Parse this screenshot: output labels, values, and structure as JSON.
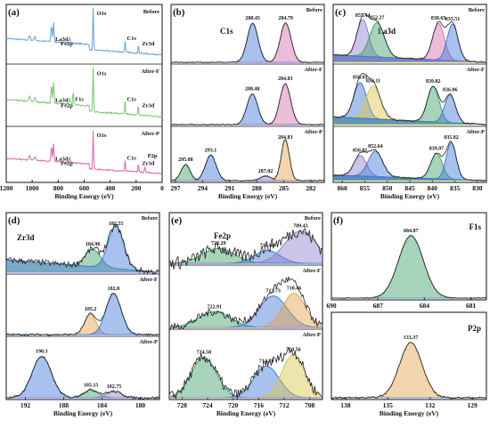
{
  "chart_data": [
    {
      "id": "a",
      "panel_label": "(a)",
      "type": "line",
      "xlabel": "Binding Energy (eV)",
      "xlim": [
        1200,
        0
      ],
      "xticks": [
        "1200",
        "1000",
        "800",
        "600",
        "400",
        "200",
        "0"
      ],
      "series": [
        {
          "name": "Before",
          "color": "#6aa0d8",
          "labels": [
            "La3d",
            "O1s",
            "Fe2p",
            "C1s",
            "Zr3d"
          ]
        },
        {
          "name": "After-F",
          "color": "#7fc27a",
          "labels": [
            "La3d",
            "O1s",
            "Fe2p",
            "F1s",
            "C1s",
            "Zr3d"
          ]
        },
        {
          "name": "After-P",
          "color": "#d96aa8",
          "labels": [
            "La3d",
            "O1s",
            "Fe2p",
            "C1s",
            "Zr3d",
            "P2p"
          ]
        }
      ],
      "peaks": [
        {
          "label": "La3d",
          "x": 836
        },
        {
          "label": "Fe2p",
          "x": 712
        },
        {
          "label": "F1s",
          "x": 685
        },
        {
          "label": "O1s",
          "x": 531
        },
        {
          "label": "C1s",
          "x": 285
        },
        {
          "label": "Zr3d",
          "x": 183
        },
        {
          "label": "P2p",
          "x": 133
        }
      ]
    },
    {
      "id": "b",
      "panel_label": "(b)",
      "type": "line",
      "title": "C1s",
      "xlabel": "Binding Energy (eV)",
      "xlim": [
        297.5,
        280.5
      ],
      "xticks": [
        "297",
        "294",
        "291",
        "288",
        "285",
        "282"
      ],
      "rows": [
        {
          "name": "Before",
          "peaks": [
            {
              "x": 288.45,
              "label": "288.45"
            },
            {
              "x": 284.79,
              "label": "284.79"
            }
          ]
        },
        {
          "name": "After-F",
          "peaks": [
            {
              "x": 288.48,
              "label": "288.48"
            },
            {
              "x": 284.83,
              "label": "284.83"
            }
          ]
        },
        {
          "name": "After-P",
          "peaks": [
            {
              "x": 295.88,
              "label": "295.88"
            },
            {
              "x": 293.1,
              "label": "293.1"
            },
            {
              "x": 287.02,
              "label": "287.02"
            },
            {
              "x": 284.83,
              "label": "284.83"
            }
          ]
        }
      ]
    },
    {
      "id": "c",
      "panel_label": "(c)",
      "type": "line",
      "title": "La3d",
      "xlabel": "Binding Energy (eV)",
      "xlim": [
        862,
        828
      ],
      "xticks": [
        "860",
        "855",
        "850",
        "845",
        "840",
        "835",
        "830"
      ],
      "rows": [
        {
          "name": "Before",
          "peaks": [
            {
              "x": 855.44,
              "label": "855.44"
            },
            {
              "x": 852.27,
              "label": "852.27"
            },
            {
              "x": 838.65,
              "label": "838.65"
            },
            {
              "x": 835.51,
              "label": "835.51"
            }
          ]
        },
        {
          "name": "After-F",
          "peaks": [
            {
              "x": 856.01,
              "label": "856.01"
            },
            {
              "x": 853.11,
              "label": "853.11"
            },
            {
              "x": 839.82,
              "label": "839.82"
            },
            {
              "x": 836.06,
              "label": "836.06"
            }
          ]
        },
        {
          "name": "After-P",
          "peaks": [
            {
              "x": 856.01,
              "label": "856.01"
            },
            {
              "x": 852.64,
              "label": "852.64"
            },
            {
              "x": 839.07,
              "label": "839.07"
            },
            {
              "x": 835.82,
              "label": "835.82"
            }
          ]
        }
      ]
    },
    {
      "id": "d",
      "panel_label": "(d)",
      "type": "line",
      "title": "Zr3d",
      "xlabel": "Binding Energy (eV)",
      "xlim": [
        194,
        178
      ],
      "xticks": [
        "192",
        "188",
        "184",
        "180"
      ],
      "rows": [
        {
          "name": "Before",
          "peaks": [
            {
              "x": 184.96,
              "label": "184.96"
            },
            {
              "x": 182.55,
              "label": "182.55"
            }
          ]
        },
        {
          "name": "After-F",
          "peaks": [
            {
              "x": 185.2,
              "label": "185.2"
            },
            {
              "x": 182.8,
              "label": "182.8"
            }
          ]
        },
        {
          "name": "After-P",
          "peaks": [
            {
              "x": 190.3,
              "label": "190.3"
            },
            {
              "x": 185.15,
              "label": "185.15"
            },
            {
              "x": 182.75,
              "label": "182.75"
            }
          ]
        }
      ]
    },
    {
      "id": "e",
      "panel_label": "(e)",
      "type": "line",
      "title": "Fe2p",
      "xlabel": "Binding Energy (eV)",
      "xlim": [
        730,
        706
      ],
      "xticks": [
        "728",
        "724",
        "720",
        "716",
        "712",
        "708"
      ],
      "rows": [
        {
          "name": "Before",
          "peaks": [
            {
              "x": 722.29,
              "label": "722.29"
            },
            {
              "x": 714.66,
              "label": "714.66"
            },
            {
              "x": 709.43,
              "label": "709.43"
            }
          ]
        },
        {
          "name": "After-F",
          "peaks": [
            {
              "x": 722.91,
              "label": "722.91"
            },
            {
              "x": 713.73,
              "label": "713.73"
            },
            {
              "x": 710.46,
              "label": "710.46"
            }
          ]
        },
        {
          "name": "After-P",
          "peaks": [
            {
              "x": 724.58,
              "label": "724.58"
            },
            {
              "x": 714.78,
              "label": "714.78"
            },
            {
              "x": 710.56,
              "label": "710.56"
            }
          ]
        }
      ]
    },
    {
      "id": "f",
      "panel_label": "(f)",
      "type": "line",
      "title": "F1s",
      "xlabel": "",
      "xlim": [
        690,
        680
      ],
      "xticks": [
        "690",
        "687",
        "684",
        "681"
      ],
      "peaks": [
        {
          "x": 684.87,
          "label": "684.87"
        }
      ]
    },
    {
      "id": "g",
      "panel_label": "",
      "type": "line",
      "title": "P2p",
      "xlabel": "Binding Energy (eV)",
      "xlim": [
        139,
        128
      ],
      "xticks": [
        "138",
        "135",
        "132",
        "129"
      ],
      "peaks": [
        {
          "x": 133.37,
          "label": "133.37"
        }
      ]
    }
  ],
  "colors": {
    "survey_before": "#6aa0d8",
    "survey_after_f": "#7fc27a",
    "survey_after_p": "#d96aa8",
    "blue": "#3f78d6",
    "green": "#3fa06b",
    "pink": "#d46cb0",
    "yellow": "#d8c64a",
    "purple": "#8f7fd0",
    "orange": "#e3a14b",
    "gray": "#555555"
  }
}
